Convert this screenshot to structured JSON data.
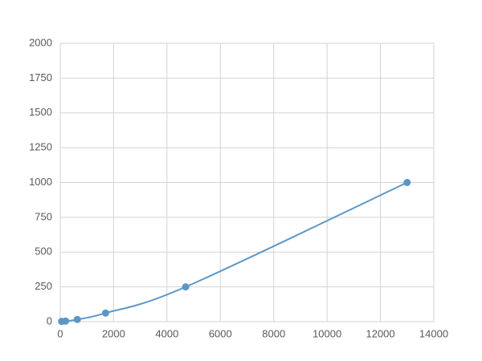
{
  "chart_data": {
    "type": "scatter",
    "line": "smooth",
    "x": [
      50,
      200,
      640,
      1700,
      4700,
      13000
    ],
    "values": [
      2,
      4,
      16,
      62,
      250,
      1000
    ],
    "color": "#5b97c6",
    "xlim": [
      0,
      14000
    ],
    "xticks": [
      0,
      2000,
      4000,
      6000,
      8000,
      10000,
      12000,
      14000
    ],
    "ylim": [
      0,
      2000
    ],
    "yticks": [
      0,
      250,
      500,
      750,
      1000,
      1250,
      1500,
      1750,
      2000
    ],
    "grid": true
  }
}
